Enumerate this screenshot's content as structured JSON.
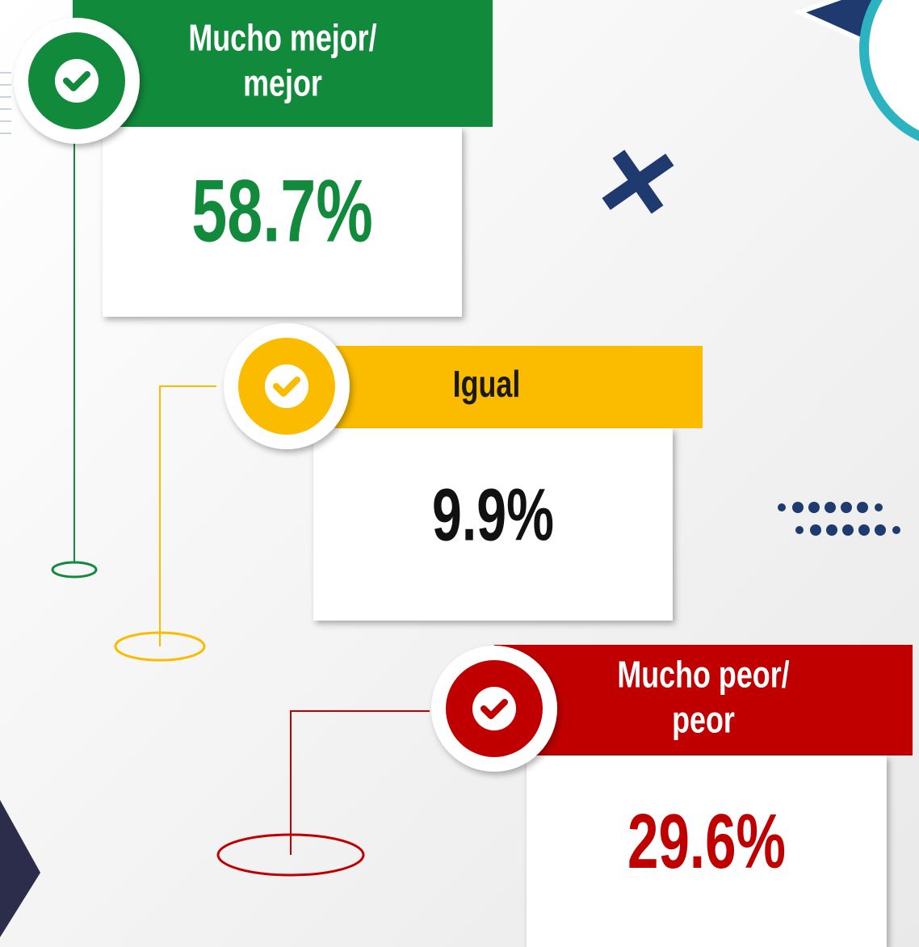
{
  "items": [
    {
      "label": [
        "Mucho mejor/",
        "mejor"
      ],
      "value": "58.7%",
      "color": "#128a3c"
    },
    {
      "label": [
        "Igual"
      ],
      "value": "9.9%",
      "color": "#fbbc00"
    },
    {
      "label": [
        "Mucho peor/",
        "peor"
      ],
      "value": "29.6%",
      "color": "#c00000"
    }
  ]
}
